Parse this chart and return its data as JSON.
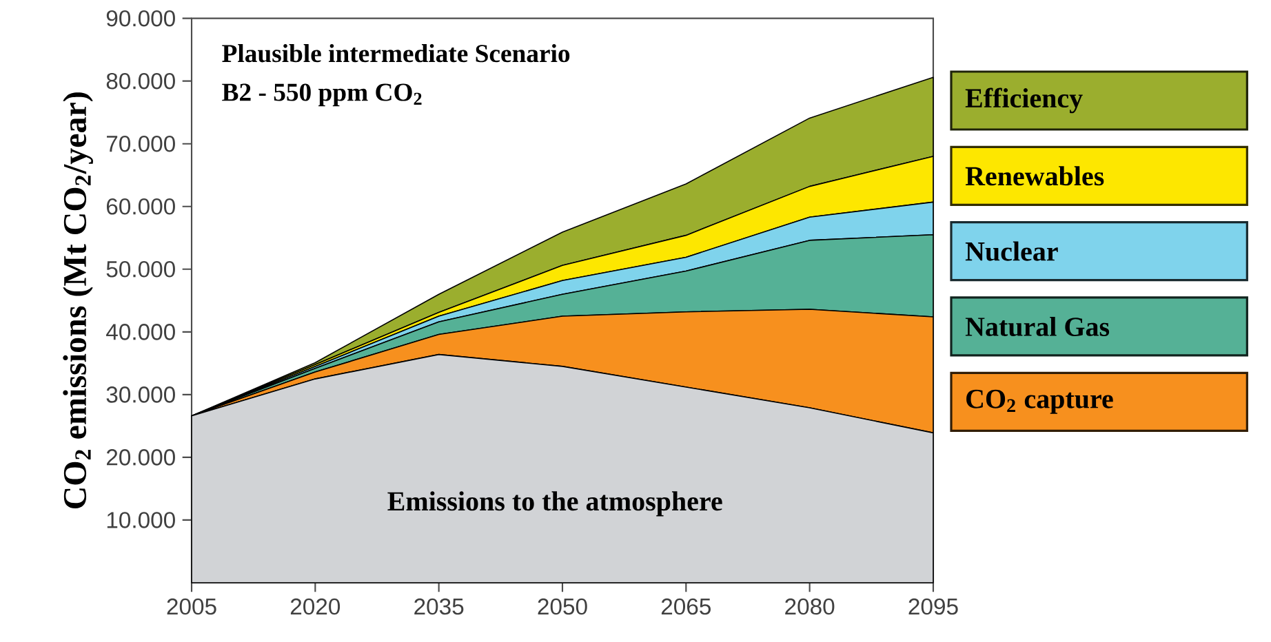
{
  "chart_data": {
    "type": "area",
    "stacked": true,
    "title": "Plausible intermediate Scenario",
    "subtitle": "B2 - 550 ppm CO$_{2}$",
    "ylabel": "CO$_{2}$ emissions (Mt CO$_{2}$/year)",
    "x": [
      2005,
      2020,
      2035,
      2050,
      2065,
      2080,
      2095
    ],
    "xlim": [
      2005,
      2095
    ],
    "xticks": [
      2005,
      2020,
      2035,
      2050,
      2065,
      2080,
      2095
    ],
    "ylim": [
      0,
      90000
    ],
    "yticks": [
      {
        "value": 10000,
        "label": "10.000"
      },
      {
        "value": 20000,
        "label": "20.000"
      },
      {
        "value": 30000,
        "label": "30.000"
      },
      {
        "value": 40000,
        "label": "40.000"
      },
      {
        "value": 50000,
        "label": "50.000"
      },
      {
        "value": 60000,
        "label": "60.000"
      },
      {
        "value": 70000,
        "label": "70.000"
      },
      {
        "value": 80000,
        "label": "80.000"
      },
      {
        "value": 90000,
        "label": "90.000"
      }
    ],
    "series": [
      {
        "color": "#d1d3d6",
        "values": [
          26600,
          32500,
          36400,
          34500,
          31200,
          27900,
          23900
        ]
      },
      {
        "name": "CO$_{2}$ capture",
        "color": "#f7901e",
        "values": [
          0,
          1100,
          3200,
          8000,
          12000,
          15700,
          18500
        ]
      },
      {
        "name": "Natural Gas",
        "color": "#55b196",
        "values": [
          0,
          600,
          2000,
          3500,
          6500,
          11000,
          13100
        ]
      },
      {
        "name": "Nuclear",
        "color": "#7fd3ec",
        "values": [
          0,
          300,
          900,
          2200,
          2200,
          3700,
          5200
        ]
      },
      {
        "name": "Renewables",
        "color": "#fde700",
        "values": [
          0,
          300,
          600,
          2400,
          3500,
          4900,
          7300
        ]
      },
      {
        "name": "Efficiency",
        "color": "#9bae2e",
        "values": [
          0,
          300,
          2900,
          5300,
          8200,
          10900,
          12600
        ]
      }
    ],
    "annotations": [
      "Emissions to the atmosphere"
    ],
    "legend": "right"
  }
}
